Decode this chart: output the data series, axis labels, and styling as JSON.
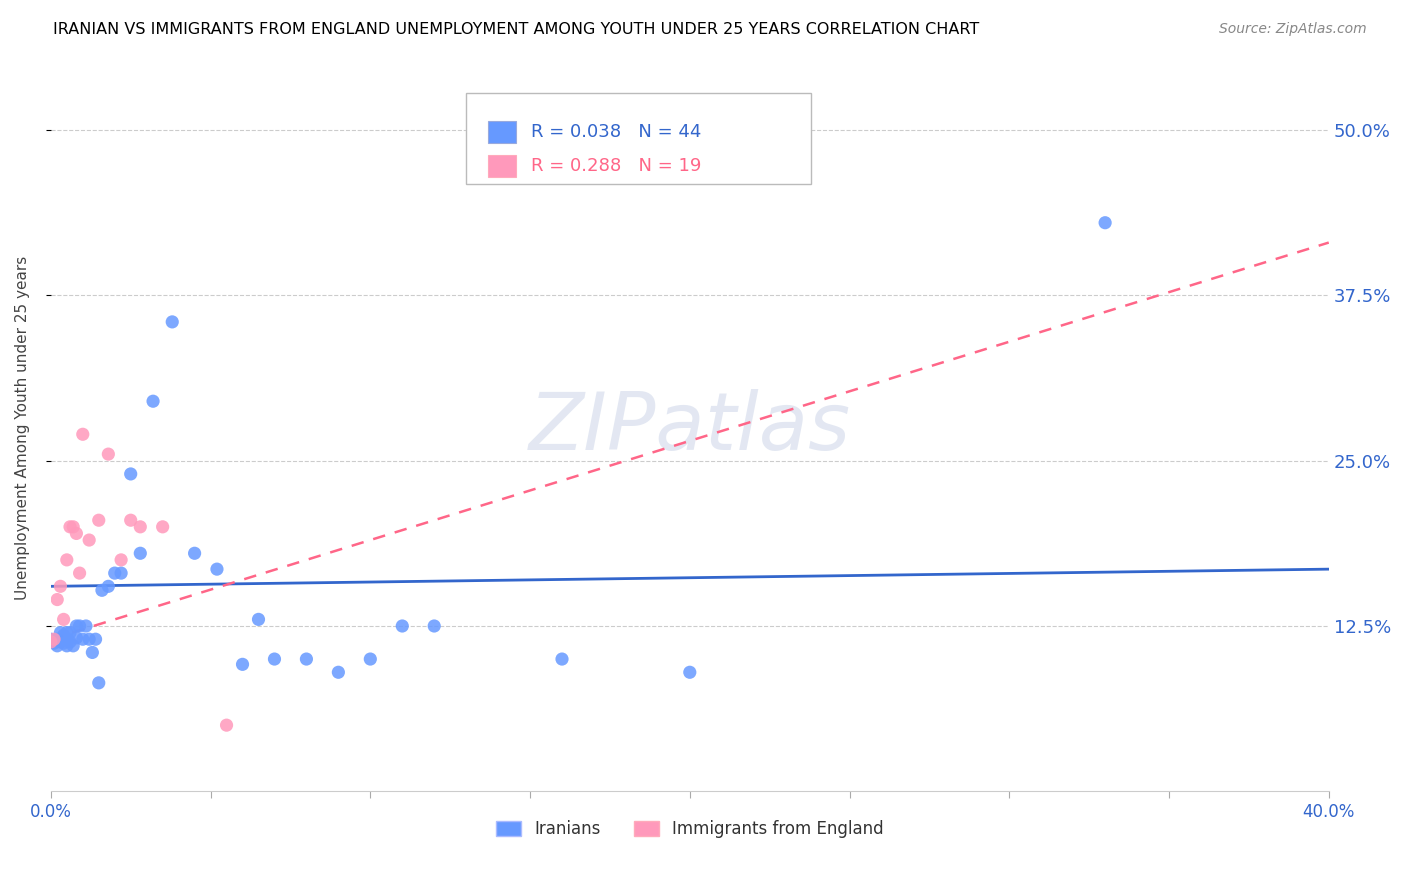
{
  "title": "IRANIAN VS IMMIGRANTS FROM ENGLAND UNEMPLOYMENT AMONG YOUTH UNDER 25 YEARS CORRELATION CHART",
  "source": "Source: ZipAtlas.com",
  "ylabel": "Unemployment Among Youth under 25 years",
  "ytick_labels": [
    "12.5%",
    "25.0%",
    "37.5%",
    "50.0%"
  ],
  "ytick_values": [
    0.125,
    0.25,
    0.375,
    0.5
  ],
  "xlim": [
    0.0,
    0.4
  ],
  "ylim": [
    0.0,
    0.55
  ],
  "watermark": "ZIPatlas",
  "iranian_color": "#6699ff",
  "england_color": "#ff99bb",
  "trendline_iranian_color": "#3366cc",
  "trendline_england_color": "#ff6688",
  "iranians_x": [
    0.0,
    0.001,
    0.002,
    0.002,
    0.003,
    0.003,
    0.004,
    0.004,
    0.005,
    0.005,
    0.005,
    0.006,
    0.006,
    0.007,
    0.008,
    0.008,
    0.009,
    0.01,
    0.011,
    0.012,
    0.013,
    0.014,
    0.015,
    0.016,
    0.018,
    0.02,
    0.022,
    0.025,
    0.028,
    0.032,
    0.038,
    0.045,
    0.052,
    0.06,
    0.065,
    0.07,
    0.08,
    0.09,
    0.1,
    0.11,
    0.12,
    0.16,
    0.2,
    0.33
  ],
  "iranians_y": [
    0.115,
    0.112,
    0.11,
    0.115,
    0.113,
    0.12,
    0.112,
    0.118,
    0.11,
    0.115,
    0.12,
    0.113,
    0.12,
    0.11,
    0.116,
    0.125,
    0.125,
    0.115,
    0.125,
    0.115,
    0.105,
    0.115,
    0.082,
    0.152,
    0.155,
    0.165,
    0.165,
    0.24,
    0.18,
    0.295,
    0.355,
    0.18,
    0.168,
    0.096,
    0.13,
    0.1,
    0.1,
    0.09,
    0.1,
    0.125,
    0.125,
    0.1,
    0.09,
    0.43
  ],
  "england_x": [
    0.0,
    0.001,
    0.002,
    0.003,
    0.004,
    0.005,
    0.006,
    0.007,
    0.008,
    0.009,
    0.01,
    0.012,
    0.015,
    0.018,
    0.022,
    0.025,
    0.028,
    0.035,
    0.055
  ],
  "england_y": [
    0.113,
    0.115,
    0.145,
    0.155,
    0.13,
    0.175,
    0.2,
    0.2,
    0.195,
    0.165,
    0.27,
    0.19,
    0.205,
    0.255,
    0.175,
    0.205,
    0.2,
    0.2,
    0.05
  ],
  "iranian_trend_x": [
    0.0,
    0.4
  ],
  "iranian_trend_y": [
    0.155,
    0.168
  ],
  "england_trend_x": [
    0.0,
    0.4
  ],
  "england_trend_y": [
    0.115,
    0.415
  ]
}
